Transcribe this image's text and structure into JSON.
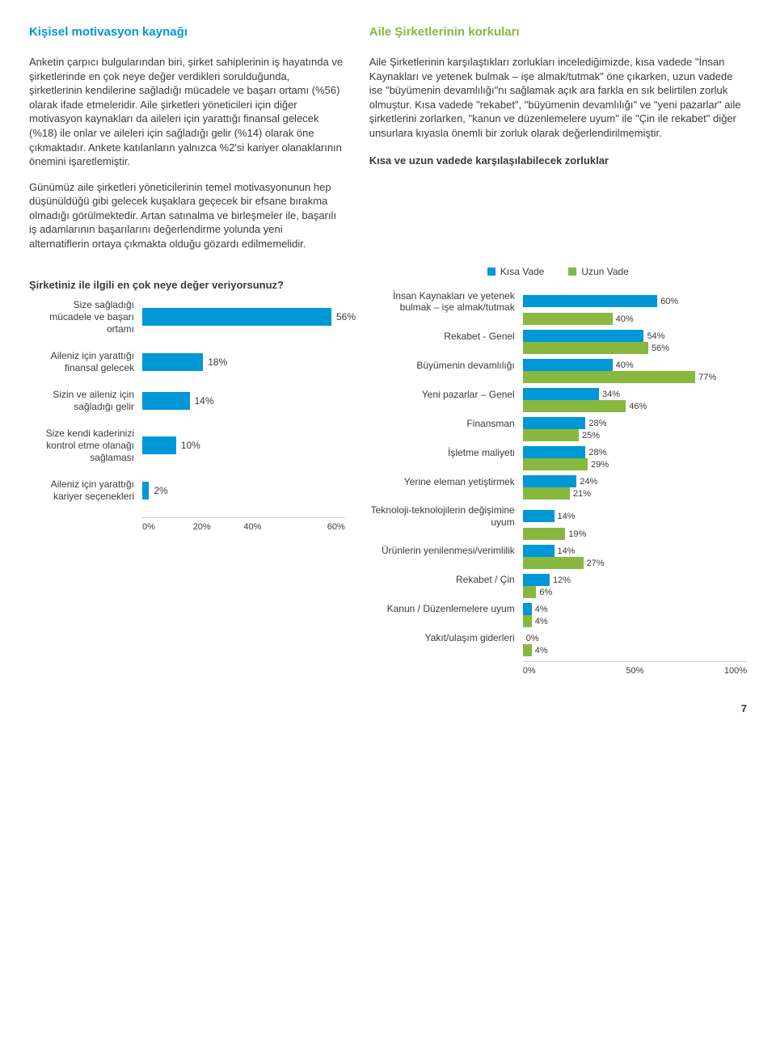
{
  "left": {
    "heading": "Kişisel motivasyon kaynağı",
    "heading_color": "#0097d6",
    "p1": "Anketin çarpıcı bulgularından biri, şirket sahiplerinin iş hayatında ve şirketlerinde en çok neye değer verdikleri sorulduğunda, şirketlerinin kendilerine sağladığı mücadele ve başarı ortamı (%56) olarak ifade etmeleridir. Aile şirketleri yöneticileri için diğer motivasyon kaynakları da aileleri için yarattığı finansal gelecek (%18) ile onlar ve aileleri için sağladığı gelir (%14) olarak öne çıkmaktadır. Ankete katılanların yalnızca %2'si kariyer olanaklarının önemini işaretlemiştir.",
    "p2": "Günümüz aile şirketleri yöneticilerinin temel motivasyonunun hep düşünüldüğü gibi gelecek kuşaklara geçecek bir efsane bırakma olmadığı görülmektedir. Artan satınalma ve birleşmeler ile, başarılı iş adamlarının başarılarını değerlendirme yolunda yeni alternatiflerin ortaya çıkmakta olduğu gözardı edilmemelidir.",
    "chart_title": "Şirketiniz ile ilgili en çok neye değer veriyorsunuz?"
  },
  "right": {
    "heading": "Aile Şirketlerinin korkuları",
    "heading_color": "#88b83f",
    "p1": "Aile Şirketlerinin karşılaştıkları zorlukları incelediğimizde, kısa vadede \"İnsan Kaynakları ve yetenek bulmak – işe almak/tutmak\" öne çıkarken, uzun vadede ise \"büyümenin devamlılığı\"nı sağlamak açık ara farkla en sık belirtilen zorluk olmuştur. Kısa vadede \"rekabet\", \"büyümenin devamlılığı\" ve \"yeni pazarlar\" aile şirketlerini zorlarken, \"kanun ve düzenlemelere uyum\" ile \"Çin ile rekabet\" diğer unsurlara kıyasla önemli bir zorluk olarak değerlendirilmemiştir.",
    "chart_title": "Kısa ve uzun vadede karşılaşılabilecek zorluklar"
  },
  "chart1": {
    "type": "bar",
    "bar_color": "#0097d6",
    "text_color": "#3a3a3a",
    "xmax": 60,
    "xticks": [
      "0%",
      "20%",
      "40%",
      "60%"
    ],
    "items": [
      {
        "label": "Size sağladığı mücadele ve başarı ortamı",
        "value": 56,
        "text": "56%"
      },
      {
        "label": "Aileniz için yarattığı finansal gelecek",
        "value": 18,
        "text": "18%"
      },
      {
        "label": "Sizin ve aileniz için sağladığı gelir",
        "value": 14,
        "text": "14%"
      },
      {
        "label": "Size kendi kaderinizi kontrol etme olanağı sağlaması",
        "value": 10,
        "text": "10%"
      },
      {
        "label": "Aileniz için yarattığı kariyer seçenekleri",
        "value": 2,
        "text": "2%"
      }
    ]
  },
  "chart2": {
    "type": "grouped-bar",
    "color_short": "#0097d6",
    "color_long": "#88b83f",
    "xmax": 100,
    "legend_short": "Kısa Vade",
    "legend_long": "Uzun Vade",
    "xticks": [
      "0%",
      "50%",
      "100%"
    ],
    "items": [
      {
        "label": "İnsan Kaynakları ve yetenek bulmak – işe almak/tutmak",
        "short": 60,
        "long": 40
      },
      {
        "label": "Rekabet - Genel",
        "short": 54,
        "long": 56
      },
      {
        "label": "Büyümenin devamlılığı",
        "short": 40,
        "long": 77
      },
      {
        "label": "Yeni pazarlar – Genel",
        "short": 34,
        "long": 46
      },
      {
        "label": "Finansman",
        "short": 28,
        "long": 25
      },
      {
        "label": "İşletme maliyeti",
        "short": 28,
        "long": 29
      },
      {
        "label": "Yerine eleman yetiştirmek",
        "short": 24,
        "long": 21
      },
      {
        "label": "Teknoloji-teknolojilerin değişimine uyum",
        "short": 14,
        "long": 19
      },
      {
        "label": "Ürünlerin yenilenmesi/verimlilik",
        "short": 14,
        "long": 27
      },
      {
        "label": "Rekabet / Çin",
        "short": 12,
        "long": 6
      },
      {
        "label": "Kanun / Düzenlemelere uyum",
        "short": 4,
        "long": 4
      },
      {
        "label": "Yakıt/ulaşım giderleri",
        "short": 0,
        "long": 4
      }
    ]
  },
  "page_number": "7"
}
